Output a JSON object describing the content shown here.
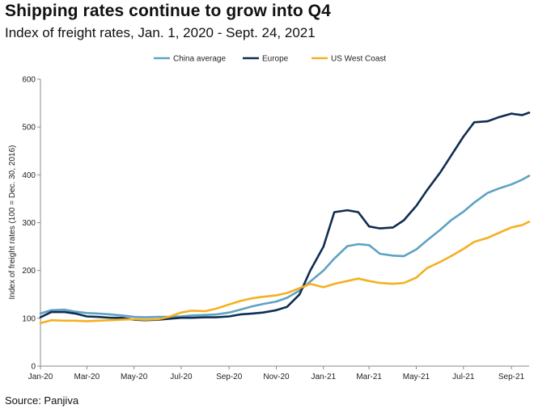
{
  "source": "Source: Panjiva",
  "colors": {
    "china": "#5fa2c2",
    "europe": "#0f2d52",
    "us": "#f5b022",
    "axis": "#8a8a8a"
  },
  "chart_data": {
    "type": "line",
    "title": "Shipping rates continue to grow into Q4",
    "subtitle": "Index of freight rates, Jan. 1, 2020 - Sept. 24, 2021",
    "xlabel": "",
    "ylabel": "Index of freight rates (100 = Dec. 30, 2016)",
    "ylim": [
      0,
      600
    ],
    "yticks": [
      "0",
      "100",
      "200",
      "300",
      "400",
      "500",
      "600"
    ],
    "xlim": [
      "2020-01-01",
      "2021-09-24"
    ],
    "xticks": [
      "Jan-20",
      "Mar-20",
      "May-20",
      "Jul-20",
      "Sep-20",
      "Nov-20",
      "Jan-21",
      "Mar-21",
      "May-21",
      "Jul-21",
      "Sep-21"
    ],
    "legend": "top",
    "grid": false,
    "series": [
      {
        "name": "China average",
        "color": "#5fa2c2",
        "x": [
          "2020-01-01",
          "2020-01-15",
          "2020-02-01",
          "2020-02-15",
          "2020-03-01",
          "2020-03-15",
          "2020-04-01",
          "2020-04-15",
          "2020-05-01",
          "2020-05-15",
          "2020-06-01",
          "2020-06-15",
          "2020-07-01",
          "2020-07-15",
          "2020-08-01",
          "2020-08-15",
          "2020-09-01",
          "2020-09-15",
          "2020-10-01",
          "2020-10-15",
          "2020-11-01",
          "2020-11-15",
          "2020-12-01",
          "2020-12-15",
          "2021-01-01",
          "2021-01-15",
          "2021-02-01",
          "2021-02-15",
          "2021-03-01",
          "2021-03-15",
          "2021-04-01",
          "2021-04-15",
          "2021-05-01",
          "2021-05-15",
          "2021-06-01",
          "2021-06-15",
          "2021-07-01",
          "2021-07-15",
          "2021-08-01",
          "2021-08-15",
          "2021-09-01",
          "2021-09-15",
          "2021-09-24"
        ],
        "values": [
          110,
          117,
          118,
          114,
          111,
          110,
          108,
          106,
          103,
          102,
          103,
          103,
          104,
          106,
          107,
          108,
          112,
          118,
          125,
          130,
          135,
          143,
          158,
          177,
          200,
          225,
          251,
          255,
          253,
          235,
          231,
          230,
          244,
          263,
          285,
          305,
          323,
          342,
          362,
          371,
          380,
          390,
          398
        ]
      },
      {
        "name": "Europe",
        "color": "#0f2d52",
        "x": [
          "2020-01-01",
          "2020-01-15",
          "2020-02-01",
          "2020-02-15",
          "2020-03-01",
          "2020-03-15",
          "2020-04-01",
          "2020-04-15",
          "2020-05-01",
          "2020-05-15",
          "2020-06-01",
          "2020-06-15",
          "2020-07-01",
          "2020-07-15",
          "2020-08-01",
          "2020-08-15",
          "2020-09-01",
          "2020-09-15",
          "2020-10-01",
          "2020-10-15",
          "2020-11-01",
          "2020-11-15",
          "2020-12-01",
          "2020-12-15",
          "2021-01-01",
          "2021-01-15",
          "2021-02-01",
          "2021-02-15",
          "2021-03-01",
          "2021-03-15",
          "2021-04-01",
          "2021-04-15",
          "2021-05-01",
          "2021-05-15",
          "2021-06-01",
          "2021-06-15",
          "2021-07-01",
          "2021-07-15",
          "2021-08-01",
          "2021-08-15",
          "2021-09-01",
          "2021-09-15",
          "2021-09-24"
        ],
        "values": [
          102,
          113,
          113,
          110,
          104,
          103,
          101,
          101,
          97,
          96,
          97,
          99,
          101,
          101,
          102,
          102,
          104,
          108,
          110,
          112,
          117,
          124,
          150,
          200,
          250,
          322,
          326,
          322,
          292,
          288,
          290,
          305,
          335,
          368,
          405,
          440,
          480,
          510,
          512,
          520,
          528,
          525,
          530
        ]
      },
      {
        "name": "US West Coast",
        "color": "#f5b022",
        "x": [
          "2020-01-01",
          "2020-01-15",
          "2020-02-01",
          "2020-02-15",
          "2020-03-01",
          "2020-03-15",
          "2020-04-01",
          "2020-04-15",
          "2020-05-01",
          "2020-05-15",
          "2020-06-01",
          "2020-06-15",
          "2020-07-01",
          "2020-07-15",
          "2020-08-01",
          "2020-08-15",
          "2020-09-01",
          "2020-09-15",
          "2020-10-01",
          "2020-10-15",
          "2020-11-01",
          "2020-11-15",
          "2020-12-01",
          "2020-12-15",
          "2021-01-01",
          "2021-01-15",
          "2021-02-01",
          "2021-02-15",
          "2021-03-01",
          "2021-03-15",
          "2021-04-01",
          "2021-04-15",
          "2021-05-01",
          "2021-05-15",
          "2021-06-01",
          "2021-06-15",
          "2021-07-01",
          "2021-07-15",
          "2021-08-01",
          "2021-08-15",
          "2021-09-01",
          "2021-09-15",
          "2021-09-24"
        ],
        "values": [
          90,
          96,
          95,
          95,
          94,
          95,
          96,
          97,
          98,
          97,
          98,
          103,
          112,
          116,
          115,
          120,
          129,
          136,
          142,
          145,
          148,
          153,
          163,
          172,
          165,
          172,
          178,
          183,
          178,
          174,
          172,
          174,
          185,
          205,
          218,
          230,
          245,
          260,
          268,
          278,
          290,
          295,
          302
        ]
      }
    ]
  }
}
